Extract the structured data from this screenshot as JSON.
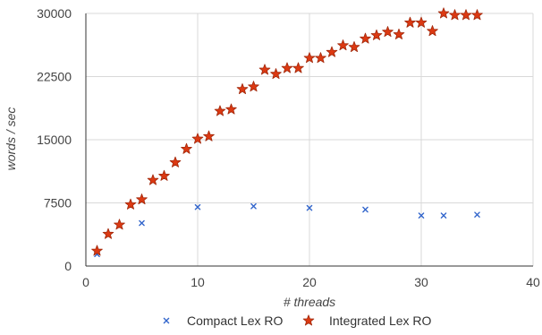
{
  "chart_data": {
    "type": "scatter",
    "title": "",
    "xlabel": "# threads",
    "ylabel": "words / sec",
    "xlim": [
      0,
      40
    ],
    "ylim": [
      0,
      30000
    ],
    "x_ticks": [
      0,
      10,
      20,
      30,
      40
    ],
    "y_ticks": [
      0,
      7500,
      15000,
      22500,
      30000
    ],
    "x_tick_labels": [
      "0",
      "10",
      "20",
      "30",
      "40"
    ],
    "y_tick_labels": [
      "0",
      "7500",
      "15000",
      "22500",
      "30000"
    ],
    "grid": true,
    "legend_position": "bottom",
    "series": [
      {
        "name": "Compact Lex RO",
        "marker": "x",
        "color": "#3366cc",
        "points": [
          {
            "x": 1,
            "y": 1400
          },
          {
            "x": 5,
            "y": 5100
          },
          {
            "x": 10,
            "y": 7000
          },
          {
            "x": 15,
            "y": 7100
          },
          {
            "x": 20,
            "y": 6900
          },
          {
            "x": 25,
            "y": 6700
          },
          {
            "x": 30,
            "y": 6000
          },
          {
            "x": 32,
            "y": 6000
          },
          {
            "x": 35,
            "y": 6100
          }
        ]
      },
      {
        "name": "Integrated Lex RO",
        "marker": "star",
        "color": "#dc3912",
        "points": [
          {
            "x": 1,
            "y": 1800
          },
          {
            "x": 2,
            "y": 3800
          },
          {
            "x": 3,
            "y": 4900
          },
          {
            "x": 4,
            "y": 7300
          },
          {
            "x": 5,
            "y": 7900
          },
          {
            "x": 6,
            "y": 10200
          },
          {
            "x": 7,
            "y": 10700
          },
          {
            "x": 8,
            "y": 12300
          },
          {
            "x": 9,
            "y": 13900
          },
          {
            "x": 10,
            "y": 15100
          },
          {
            "x": 11,
            "y": 15400
          },
          {
            "x": 12,
            "y": 18400
          },
          {
            "x": 13,
            "y": 18600
          },
          {
            "x": 14,
            "y": 21000
          },
          {
            "x": 15,
            "y": 21300
          },
          {
            "x": 16,
            "y": 23300
          },
          {
            "x": 17,
            "y": 22800
          },
          {
            "x": 18,
            "y": 23500
          },
          {
            "x": 19,
            "y": 23500
          },
          {
            "x": 20,
            "y": 24700
          },
          {
            "x": 21,
            "y": 24700
          },
          {
            "x": 22,
            "y": 25400
          },
          {
            "x": 23,
            "y": 26200
          },
          {
            "x": 24,
            "y": 26000
          },
          {
            "x": 25,
            "y": 27000
          },
          {
            "x": 26,
            "y": 27400
          },
          {
            "x": 27,
            "y": 27800
          },
          {
            "x": 28,
            "y": 27500
          },
          {
            "x": 29,
            "y": 28900
          },
          {
            "x": 30,
            "y": 28900
          },
          {
            "x": 31,
            "y": 27900
          },
          {
            "x": 32,
            "y": 30000
          },
          {
            "x": 33,
            "y": 29800
          },
          {
            "x": 34,
            "y": 29800
          },
          {
            "x": 35,
            "y": 29800
          }
        ]
      }
    ]
  }
}
